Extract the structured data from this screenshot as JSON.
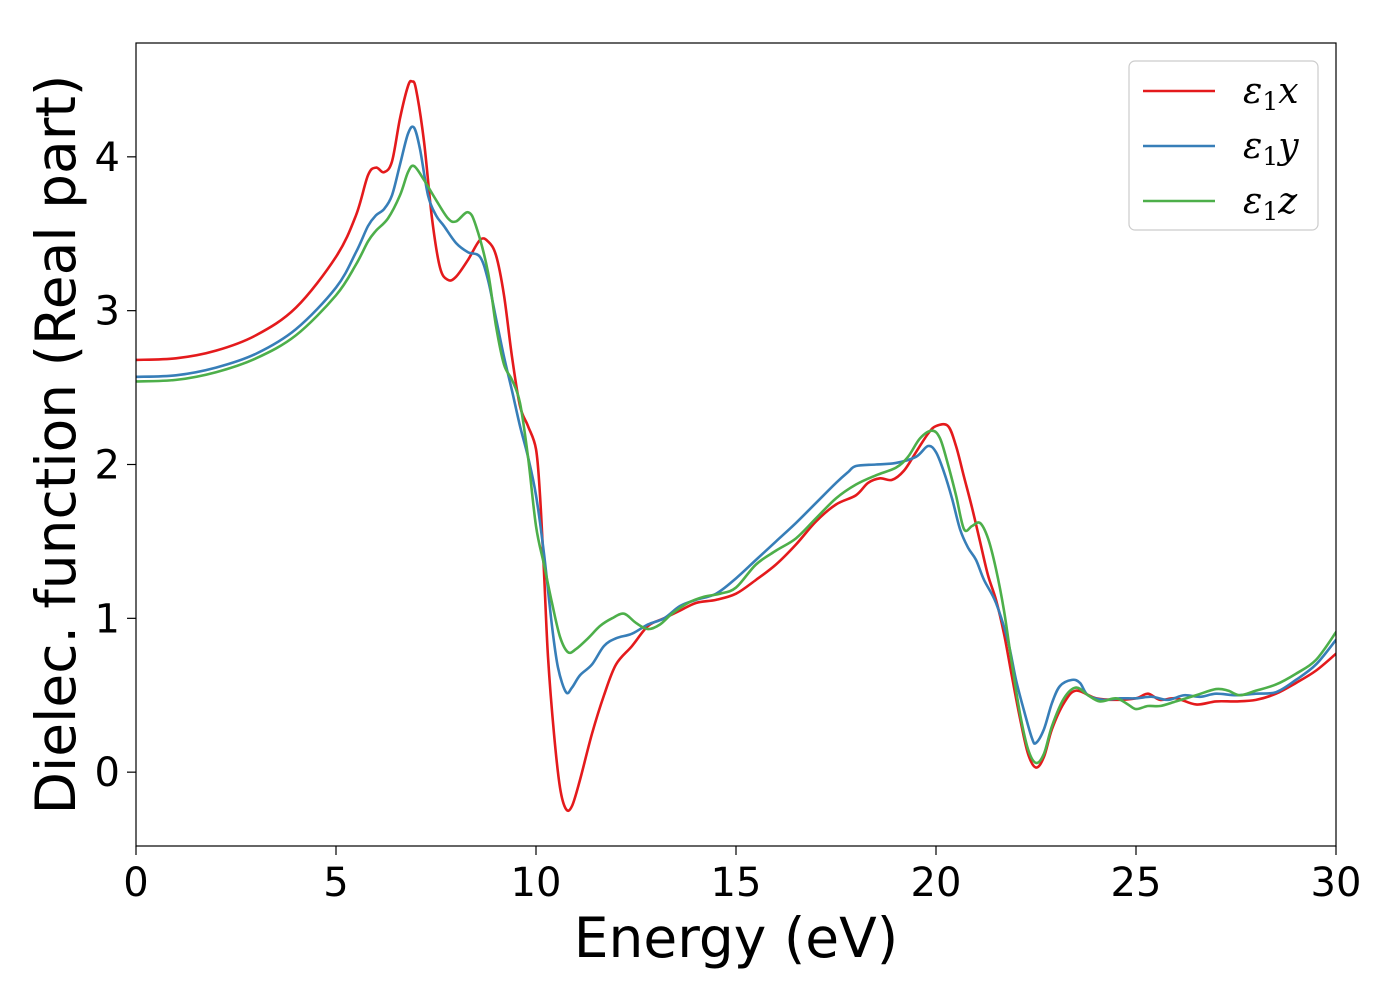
{
  "chart_data": {
    "type": "line",
    "xlabel": "Energy (eV)",
    "ylabel": "Dielec. function (Real part)",
    "xlim": [
      0,
      30
    ],
    "ylim": [
      -0.48,
      4.74
    ],
    "xticks": [
      0,
      5,
      10,
      15,
      20,
      25,
      30
    ],
    "yticks": [
      0,
      1,
      2,
      3,
      4
    ],
    "grid": false,
    "legend_position": "top-right",
    "series": [
      {
        "name": "ε₁x",
        "legend_base": "ε",
        "legend_sub": "1",
        "legend_suffix": "x",
        "color": "#e41a1c",
        "points": [
          [
            0,
            2.68
          ],
          [
            1,
            2.69
          ],
          [
            2,
            2.74
          ],
          [
            3,
            2.84
          ],
          [
            4,
            3.02
          ],
          [
            5,
            3.35
          ],
          [
            5.5,
            3.62
          ],
          [
            5.8,
            3.88
          ],
          [
            6,
            3.93
          ],
          [
            6.2,
            3.9
          ],
          [
            6.4,
            3.97
          ],
          [
            6.6,
            4.25
          ],
          [
            6.8,
            4.46
          ],
          [
            6.9,
            4.49
          ],
          [
            7.0,
            4.44
          ],
          [
            7.2,
            4.1
          ],
          [
            7.4,
            3.6
          ],
          [
            7.6,
            3.28
          ],
          [
            7.8,
            3.2
          ],
          [
            8.0,
            3.22
          ],
          [
            8.3,
            3.33
          ],
          [
            8.6,
            3.46
          ],
          [
            8.8,
            3.45
          ],
          [
            9.0,
            3.36
          ],
          [
            9.2,
            3.1
          ],
          [
            9.4,
            2.7
          ],
          [
            9.6,
            2.38
          ],
          [
            9.8,
            2.25
          ],
          [
            10.0,
            2.1
          ],
          [
            10.1,
            1.8
          ],
          [
            10.2,
            1.3
          ],
          [
            10.3,
            0.75
          ],
          [
            10.45,
            0.25
          ],
          [
            10.6,
            -0.1
          ],
          [
            10.75,
            -0.24
          ],
          [
            10.9,
            -0.22
          ],
          [
            11.1,
            -0.05
          ],
          [
            11.4,
            0.25
          ],
          [
            11.7,
            0.5
          ],
          [
            12.0,
            0.7
          ],
          [
            12.4,
            0.82
          ],
          [
            12.8,
            0.95
          ],
          [
            13.2,
            1.0
          ],
          [
            13.6,
            1.05
          ],
          [
            14.0,
            1.1
          ],
          [
            14.5,
            1.12
          ],
          [
            15.0,
            1.16
          ],
          [
            15.5,
            1.25
          ],
          [
            16.0,
            1.35
          ],
          [
            16.5,
            1.48
          ],
          [
            17.0,
            1.63
          ],
          [
            17.5,
            1.74
          ],
          [
            18.0,
            1.8
          ],
          [
            18.3,
            1.88
          ],
          [
            18.6,
            1.91
          ],
          [
            18.9,
            1.9
          ],
          [
            19.2,
            1.96
          ],
          [
            19.5,
            2.08
          ],
          [
            19.8,
            2.2
          ],
          [
            20.0,
            2.25
          ],
          [
            20.3,
            2.25
          ],
          [
            20.5,
            2.12
          ],
          [
            20.7,
            1.92
          ],
          [
            20.9,
            1.72
          ],
          [
            21.1,
            1.5
          ],
          [
            21.3,
            1.28
          ],
          [
            21.5,
            1.12
          ],
          [
            21.7,
            0.9
          ],
          [
            21.9,
            0.62
          ],
          [
            22.1,
            0.35
          ],
          [
            22.3,
            0.12
          ],
          [
            22.5,
            0.03
          ],
          [
            22.7,
            0.1
          ],
          [
            22.9,
            0.28
          ],
          [
            23.2,
            0.45
          ],
          [
            23.5,
            0.53
          ],
          [
            24.0,
            0.48
          ],
          [
            24.5,
            0.47
          ],
          [
            25.0,
            0.48
          ],
          [
            25.3,
            0.51
          ],
          [
            25.6,
            0.47
          ],
          [
            26.0,
            0.48
          ],
          [
            26.5,
            0.44
          ],
          [
            27.0,
            0.46
          ],
          [
            27.5,
            0.46
          ],
          [
            28.0,
            0.47
          ],
          [
            28.5,
            0.51
          ],
          [
            29.0,
            0.58
          ],
          [
            29.5,
            0.66
          ],
          [
            30.0,
            0.77
          ]
        ]
      },
      {
        "name": "ε₁y",
        "legend_base": "ε",
        "legend_sub": "1",
        "legend_suffix": "y",
        "color": "#377eb8",
        "points": [
          [
            0,
            2.57
          ],
          [
            1,
            2.58
          ],
          [
            2,
            2.63
          ],
          [
            3,
            2.72
          ],
          [
            4,
            2.88
          ],
          [
            5,
            3.15
          ],
          [
            5.5,
            3.38
          ],
          [
            5.8,
            3.55
          ],
          [
            6,
            3.62
          ],
          [
            6.2,
            3.66
          ],
          [
            6.4,
            3.75
          ],
          [
            6.6,
            3.95
          ],
          [
            6.8,
            4.15
          ],
          [
            6.95,
            4.19
          ],
          [
            7.1,
            4.05
          ],
          [
            7.3,
            3.75
          ],
          [
            7.5,
            3.62
          ],
          [
            7.7,
            3.55
          ],
          [
            8.0,
            3.44
          ],
          [
            8.3,
            3.38
          ],
          [
            8.6,
            3.35
          ],
          [
            8.8,
            3.2
          ],
          [
            9.0,
            2.95
          ],
          [
            9.2,
            2.7
          ],
          [
            9.4,
            2.48
          ],
          [
            9.6,
            2.25
          ],
          [
            9.8,
            2.05
          ],
          [
            10.0,
            1.8
          ],
          [
            10.2,
            1.42
          ],
          [
            10.4,
            0.95
          ],
          [
            10.55,
            0.68
          ],
          [
            10.75,
            0.52
          ],
          [
            10.9,
            0.55
          ],
          [
            11.1,
            0.63
          ],
          [
            11.4,
            0.7
          ],
          [
            11.7,
            0.82
          ],
          [
            12.0,
            0.87
          ],
          [
            12.4,
            0.9
          ],
          [
            12.8,
            0.96
          ],
          [
            13.2,
            1.0
          ],
          [
            13.6,
            1.08
          ],
          [
            14.0,
            1.12
          ],
          [
            14.5,
            1.16
          ],
          [
            15.0,
            1.26
          ],
          [
            15.5,
            1.38
          ],
          [
            16.0,
            1.5
          ],
          [
            16.5,
            1.62
          ],
          [
            17.0,
            1.75
          ],
          [
            17.5,
            1.88
          ],
          [
            17.8,
            1.95
          ],
          [
            18.0,
            1.99
          ],
          [
            18.5,
            2.0
          ],
          [
            19.0,
            2.01
          ],
          [
            19.5,
            2.05
          ],
          [
            19.8,
            2.12
          ],
          [
            20.0,
            2.08
          ],
          [
            20.2,
            1.95
          ],
          [
            20.4,
            1.78
          ],
          [
            20.6,
            1.58
          ],
          [
            20.8,
            1.46
          ],
          [
            21.0,
            1.38
          ],
          [
            21.2,
            1.25
          ],
          [
            21.5,
            1.1
          ],
          [
            21.8,
            0.85
          ],
          [
            22.0,
            0.6
          ],
          [
            22.2,
            0.4
          ],
          [
            22.4,
            0.22
          ],
          [
            22.5,
            0.19
          ],
          [
            22.7,
            0.28
          ],
          [
            22.9,
            0.45
          ],
          [
            23.1,
            0.56
          ],
          [
            23.4,
            0.6
          ],
          [
            23.6,
            0.58
          ],
          [
            23.8,
            0.5
          ],
          [
            24.2,
            0.47
          ],
          [
            24.6,
            0.48
          ],
          [
            25.0,
            0.48
          ],
          [
            25.4,
            0.49
          ],
          [
            25.8,
            0.47
          ],
          [
            26.2,
            0.5
          ],
          [
            26.6,
            0.49
          ],
          [
            27.0,
            0.51
          ],
          [
            27.5,
            0.5
          ],
          [
            28.0,
            0.51
          ],
          [
            28.5,
            0.52
          ],
          [
            29.0,
            0.6
          ],
          [
            29.5,
            0.7
          ],
          [
            30.0,
            0.86
          ]
        ]
      },
      {
        "name": "ε₁z",
        "legend_base": "ε",
        "legend_sub": "1",
        "legend_suffix": "z",
        "color": "#4daf4a",
        "points": [
          [
            0,
            2.54
          ],
          [
            1,
            2.55
          ],
          [
            2,
            2.6
          ],
          [
            3,
            2.69
          ],
          [
            4,
            2.84
          ],
          [
            5,
            3.1
          ],
          [
            5.5,
            3.3
          ],
          [
            5.8,
            3.45
          ],
          [
            6,
            3.52
          ],
          [
            6.3,
            3.6
          ],
          [
            6.6,
            3.75
          ],
          [
            6.8,
            3.9
          ],
          [
            6.95,
            3.94
          ],
          [
            7.2,
            3.85
          ],
          [
            7.5,
            3.72
          ],
          [
            7.8,
            3.6
          ],
          [
            8.0,
            3.58
          ],
          [
            8.3,
            3.64
          ],
          [
            8.5,
            3.55
          ],
          [
            8.8,
            3.25
          ],
          [
            9.0,
            2.9
          ],
          [
            9.2,
            2.65
          ],
          [
            9.4,
            2.55
          ],
          [
            9.6,
            2.4
          ],
          [
            9.8,
            2.05
          ],
          [
            10.0,
            1.6
          ],
          [
            10.2,
            1.35
          ],
          [
            10.4,
            1.1
          ],
          [
            10.6,
            0.88
          ],
          [
            10.8,
            0.78
          ],
          [
            11.0,
            0.8
          ],
          [
            11.3,
            0.87
          ],
          [
            11.6,
            0.95
          ],
          [
            11.9,
            1.0
          ],
          [
            12.2,
            1.03
          ],
          [
            12.5,
            0.97
          ],
          [
            12.8,
            0.93
          ],
          [
            13.1,
            0.96
          ],
          [
            13.4,
            1.03
          ],
          [
            13.8,
            1.1
          ],
          [
            14.2,
            1.14
          ],
          [
            14.6,
            1.16
          ],
          [
            15.0,
            1.2
          ],
          [
            15.5,
            1.35
          ],
          [
            16.0,
            1.44
          ],
          [
            16.5,
            1.52
          ],
          [
            17.0,
            1.65
          ],
          [
            17.5,
            1.78
          ],
          [
            18.0,
            1.87
          ],
          [
            18.5,
            1.93
          ],
          [
            19.0,
            1.98
          ],
          [
            19.3,
            2.05
          ],
          [
            19.6,
            2.17
          ],
          [
            19.9,
            2.22
          ],
          [
            20.1,
            2.17
          ],
          [
            20.3,
            2.0
          ],
          [
            20.5,
            1.8
          ],
          [
            20.7,
            1.58
          ],
          [
            20.9,
            1.6
          ],
          [
            21.1,
            1.62
          ],
          [
            21.3,
            1.52
          ],
          [
            21.5,
            1.32
          ],
          [
            21.7,
            1.05
          ],
          [
            21.9,
            0.7
          ],
          [
            22.1,
            0.38
          ],
          [
            22.3,
            0.15
          ],
          [
            22.5,
            0.06
          ],
          [
            22.7,
            0.12
          ],
          [
            22.9,
            0.3
          ],
          [
            23.2,
            0.48
          ],
          [
            23.5,
            0.55
          ],
          [
            23.8,
            0.5
          ],
          [
            24.1,
            0.46
          ],
          [
            24.5,
            0.48
          ],
          [
            24.8,
            0.44
          ],
          [
            25.0,
            0.41
          ],
          [
            25.3,
            0.43
          ],
          [
            25.6,
            0.43
          ],
          [
            26.0,
            0.46
          ],
          [
            26.5,
            0.5
          ],
          [
            27.0,
            0.54
          ],
          [
            27.3,
            0.53
          ],
          [
            27.6,
            0.5
          ],
          [
            28.0,
            0.53
          ],
          [
            28.5,
            0.57
          ],
          [
            29.0,
            0.64
          ],
          [
            29.5,
            0.73
          ],
          [
            30.0,
            0.91
          ]
        ]
      }
    ]
  }
}
